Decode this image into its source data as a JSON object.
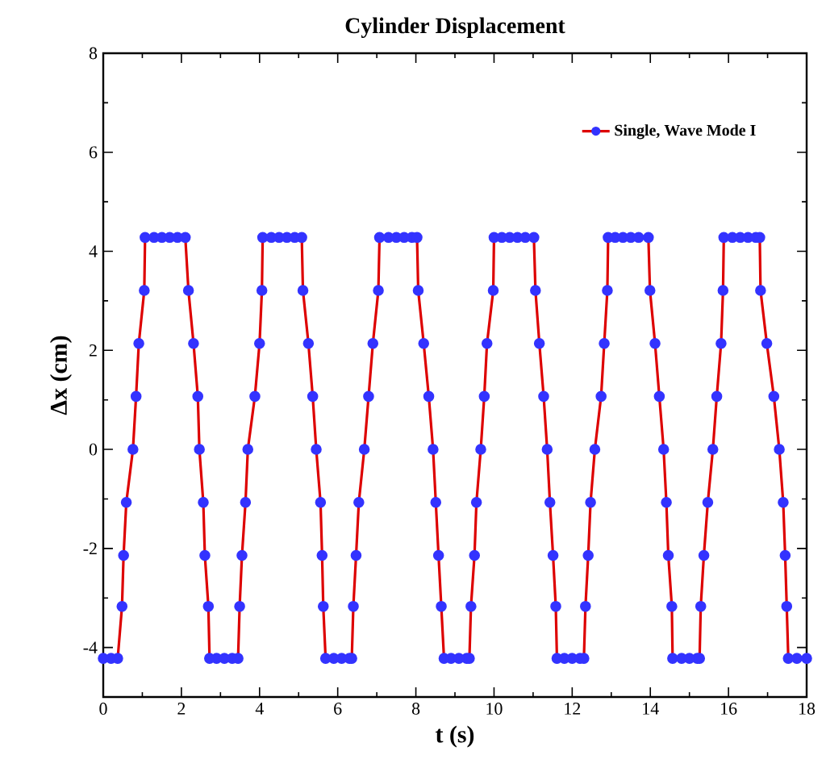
{
  "chart_data": {
    "type": "line",
    "title": "Cylinder Displacement",
    "xlabel": "t (s)",
    "ylabel": "Δx (cm)",
    "xlim": [
      0,
      18
    ],
    "ylim": [
      -5,
      8
    ],
    "xticks": [
      0,
      2,
      4,
      6,
      8,
      10,
      12,
      14,
      16,
      18
    ],
    "yticks": [
      -4,
      -2,
      0,
      2,
      4,
      6,
      8
    ],
    "grid": false,
    "legend": "top right",
    "marker": "circle",
    "line_style": "solid",
    "series": [
      {
        "name": "Single, Wave Mode I",
        "color": "#dd0000",
        "colors": [
          "#3333ff",
          "#3333ff",
          "#3333ff",
          "#3333ff",
          "#3333ff",
          "#3333ff",
          "#3333ff",
          "#3333ff",
          "#3333ff",
          "#3333ff",
          "#3333ff",
          "#3333ff",
          "#3333ff",
          "#3333ff",
          "#3333ff",
          "#3333ff",
          "#3333ff",
          "#3333ff",
          "#3333ff",
          "#3333ff",
          "#3333ff",
          "#3333ff",
          "#3333ff",
          "#3333ff",
          "#3333ff",
          "#3333ff",
          "#3333ff",
          "#3333ff",
          "#3333ff",
          "#3333ff",
          "#3333ff",
          "#3333ff",
          "#3333ff",
          "#3333ff",
          "#3333ff",
          "#3333ff",
          "#3333ff",
          "#3333ff",
          "#3333ff",
          "#3333ff",
          "#3333ff",
          "#3333ff",
          "#3333ff",
          "#3333ff",
          "#3333ff",
          "#3333ff",
          "#3333ff",
          "#3333ff",
          "#3333ff",
          "#3333ff",
          "#3333ff",
          "#3333ff",
          "#3333ff",
          "#3333ff",
          "#3333ff",
          "#3333ff",
          "#3333ff",
          "#3333ff",
          "#3333ff",
          "#3333ff",
          "#3333ff",
          "#3333ff",
          "#3333ff",
          "#3333ff",
          "#3333ff",
          "#3333ff",
          "#3333ff",
          "#3333ff",
          "#3333ff",
          "#3333ff",
          "#3333ff",
          "#3333ff",
          "#3333ff",
          "#3333ff",
          "#3333ff",
          "#3333ff",
          "#3333ff",
          "#3333ff",
          "#3333ff",
          "#3333ff",
          "#3333ff",
          "#3333ff",
          "#3333ff",
          "#3333ff",
          "#3333ff",
          "#3333ff",
          "#3333ff",
          "#3333ff",
          "#3333ff",
          "#3333ff",
          "#3333ff",
          "#3333ff",
          "#3333ff",
          "#3333ff",
          "#3333ff",
          "#3333ff",
          "#3333ff",
          "#3333ff",
          "#3333ff",
          "#3333ff",
          "#3333ff",
          "#3333ff",
          "#3333ff",
          "#3333ff",
          "#3333ff",
          "#3333ff",
          "#3333ff",
          "#3333ff",
          "#3333ff",
          "#3333ff",
          "#3333ff",
          "#3333ff",
          "#3333ff",
          "#3333ff",
          "#3333ff",
          "#3333ff",
          "#3333ff",
          "#3333ff",
          "#3333ff",
          "#3333ff",
          "#3333ff",
          "#3333ff",
          "#3333ff",
          "#3333ff",
          "#3333ff",
          "#3333ff",
          "#3333ff",
          "#3333ff",
          "#3333ff",
          "#3333ff",
          "#3333ff",
          "#3333ff",
          "#3333ff",
          "#3333ff",
          "#3333ff",
          "#3333ff",
          "#3333ff",
          "#3333ff",
          "#3333ff",
          "#3333ff",
          "#3333ff",
          "#3333ff",
          "#3333ff",
          "#3333ff",
          "#3333ff",
          "#3333ff",
          "#3333ff",
          "#3333ff",
          "#3333ff",
          "#3333ff",
          "#3333ff"
        ],
        "x": [
          0,
          0.2,
          0.37,
          0.48,
          0.52,
          0.59,
          0.76,
          0.84,
          0.91,
          1.05,
          1.07,
          1.3,
          1.5,
          1.7,
          1.9,
          2.1,
          2.18,
          2.31,
          2.42,
          2.46,
          2.56,
          2.6,
          2.69,
          2.72,
          2.9,
          3.1,
          3.3,
          3.45,
          3.49,
          3.55,
          3.64,
          3.7,
          3.88,
          4.0,
          4.06,
          4.08,
          4.3,
          4.5,
          4.7,
          4.9,
          5.08,
          5.11,
          5.25,
          5.36,
          5.45,
          5.56,
          5.6,
          5.63,
          5.69,
          5.9,
          6.1,
          6.3,
          6.36,
          6.4,
          6.47,
          6.54,
          6.68,
          6.79,
          6.9,
          7.04,
          7.07,
          7.3,
          7.5,
          7.7,
          7.9,
          8.03,
          8.06,
          8.2,
          8.33,
          8.44,
          8.51,
          8.58,
          8.65,
          8.72,
          8.9,
          9.1,
          9.3,
          9.37,
          9.41,
          9.5,
          9.55,
          9.66,
          9.75,
          9.82,
          9.98,
          10.0,
          10.2,
          10.4,
          10.6,
          10.8,
          11.02,
          11.06,
          11.16,
          11.27,
          11.36,
          11.43,
          11.51,
          11.58,
          11.61,
          11.8,
          12.0,
          12.2,
          12.3,
          12.34,
          12.41,
          12.47,
          12.58,
          12.74,
          12.82,
          12.9,
          12.92,
          13.1,
          13.3,
          13.5,
          13.7,
          13.95,
          13.99,
          14.12,
          14.23,
          14.34,
          14.41,
          14.46,
          14.55,
          14.57,
          14.8,
          15.0,
          15.2,
          15.26,
          15.29,
          15.37,
          15.47,
          15.6,
          15.7,
          15.81,
          15.86,
          15.88,
          16.1,
          16.3,
          16.5,
          16.7,
          16.8,
          16.82,
          16.98,
          17.16,
          17.3,
          17.4,
          17.45,
          17.49,
          17.53,
          17.75,
          18.0
        ],
        "values": [
          -4.22,
          -4.22,
          -4.22,
          -3.17,
          -2.14,
          -1.07,
          0,
          1.07,
          2.14,
          3.21,
          4.28,
          4.28,
          4.28,
          4.28,
          4.28,
          4.28,
          3.21,
          2.14,
          1.07,
          0,
          -1.07,
          -2.14,
          -3.17,
          -4.22,
          -4.22,
          -4.22,
          -4.22,
          -4.22,
          -3.17,
          -2.14,
          -1.07,
          0,
          1.07,
          2.14,
          3.21,
          4.28,
          4.28,
          4.28,
          4.28,
          4.28,
          4.28,
          3.21,
          2.14,
          1.07,
          0,
          -1.07,
          -2.14,
          -3.17,
          -4.22,
          -4.22,
          -4.22,
          -4.22,
          -4.22,
          -3.17,
          -2.14,
          -1.07,
          0,
          1.07,
          2.14,
          3.21,
          4.28,
          4.28,
          4.28,
          4.28,
          4.28,
          4.28,
          3.21,
          2.14,
          1.07,
          0,
          -1.07,
          -2.14,
          -3.17,
          -4.22,
          -4.22,
          -4.22,
          -4.22,
          -4.22,
          -3.17,
          -2.14,
          -1.07,
          0,
          1.07,
          2.14,
          3.21,
          4.28,
          4.28,
          4.28,
          4.28,
          4.28,
          4.28,
          3.21,
          2.14,
          1.07,
          0,
          -1.07,
          -2.14,
          -3.17,
          -4.22,
          -4.22,
          -4.22,
          -4.22,
          -4.22,
          -3.17,
          -2.14,
          -1.07,
          0,
          1.07,
          2.14,
          3.21,
          4.28,
          4.28,
          4.28,
          4.28,
          4.28,
          4.28,
          3.21,
          2.14,
          1.07,
          0,
          -1.07,
          -2.14,
          -3.17,
          -4.22,
          -4.22,
          -4.22,
          -4.22,
          -4.22,
          -3.17,
          -2.14,
          -1.07,
          0,
          1.07,
          2.14,
          3.21,
          4.28,
          4.28,
          4.28,
          4.28,
          4.28,
          4.28,
          3.21,
          2.14,
          1.07,
          0,
          -1.07,
          -2.14,
          -3.17,
          -4.22,
          -4.22,
          -4.22
        ]
      }
    ]
  }
}
